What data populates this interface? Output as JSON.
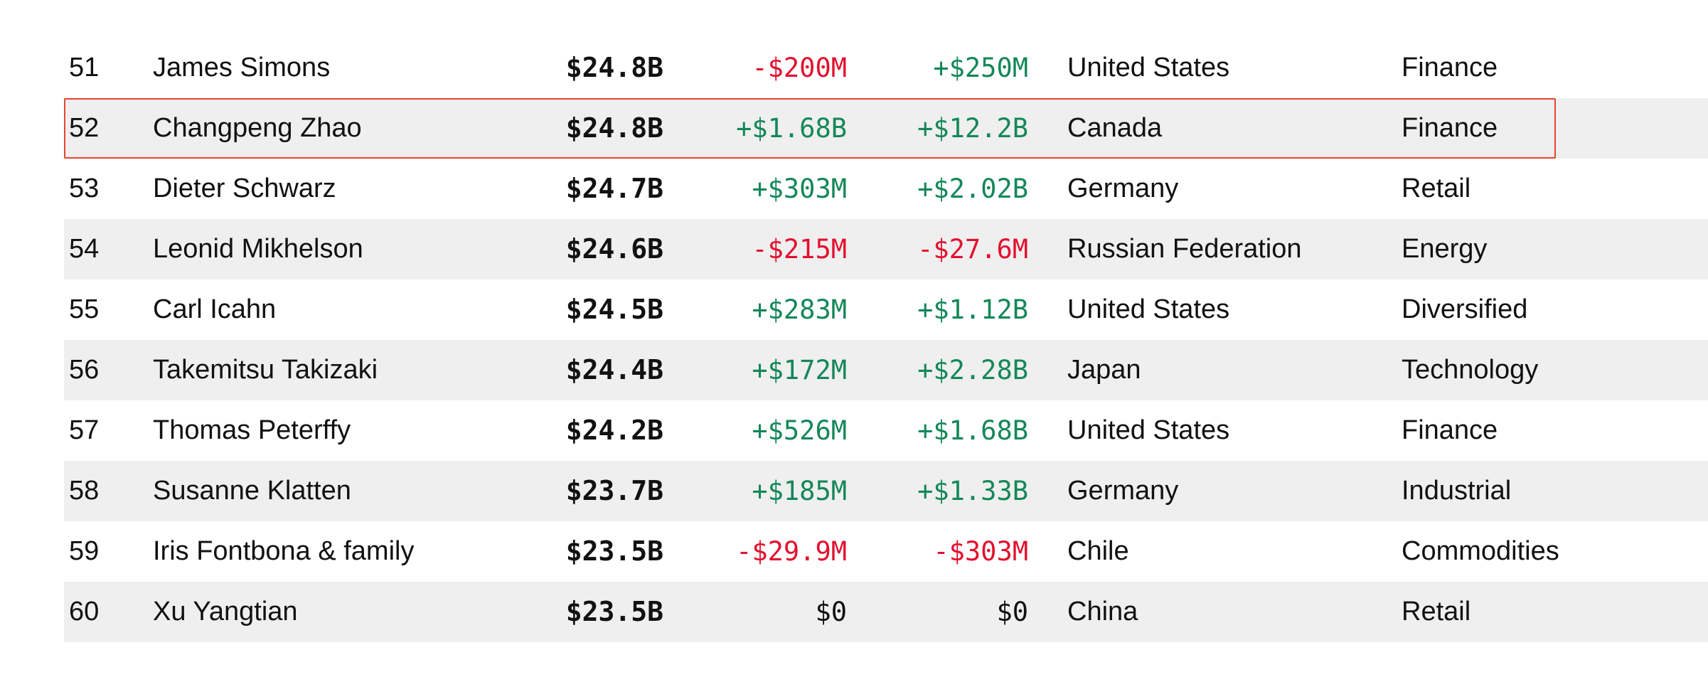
{
  "colors": {
    "positive": "#14875a",
    "negative": "#e3102e",
    "highlight_border": "#e8442e",
    "alt_row": "#efefef"
  },
  "rows": [
    {
      "rank": "51",
      "name": "James Simons",
      "net_worth": "$24.8B",
      "change_1": "-$200M",
      "change_2": "+$250M",
      "country": "United States",
      "industry": "Finance"
    },
    {
      "rank": "52",
      "name": "Changpeng Zhao",
      "net_worth": "$24.8B",
      "change_1": "+$1.68B",
      "change_2": "+$12.2B",
      "country": "Canada",
      "industry": "Finance"
    },
    {
      "rank": "53",
      "name": "Dieter Schwarz",
      "net_worth": "$24.7B",
      "change_1": "+$303M",
      "change_2": "+$2.02B",
      "country": "Germany",
      "industry": "Retail"
    },
    {
      "rank": "54",
      "name": "Leonid Mikhelson",
      "net_worth": "$24.6B",
      "change_1": "-$215M",
      "change_2": "-$27.6M",
      "country": "Russian Federation",
      "industry": "Energy"
    },
    {
      "rank": "55",
      "name": "Carl Icahn",
      "net_worth": "$24.5B",
      "change_1": "+$283M",
      "change_2": "+$1.12B",
      "country": "United States",
      "industry": "Diversified"
    },
    {
      "rank": "56",
      "name": "Takemitsu Takizaki",
      "net_worth": "$24.4B",
      "change_1": "+$172M",
      "change_2": "+$2.28B",
      "country": "Japan",
      "industry": "Technology"
    },
    {
      "rank": "57",
      "name": "Thomas Peterffy",
      "net_worth": "$24.2B",
      "change_1": "+$526M",
      "change_2": "+$1.68B",
      "country": "United States",
      "industry": "Finance"
    },
    {
      "rank": "58",
      "name": "Susanne Klatten",
      "net_worth": "$23.7B",
      "change_1": "+$185M",
      "change_2": "+$1.33B",
      "country": "Germany",
      "industry": "Industrial"
    },
    {
      "rank": "59",
      "name": "Iris Fontbona & family",
      "net_worth": "$23.5B",
      "change_1": "-$29.9M",
      "change_2": "-$303M",
      "country": "Chile",
      "industry": "Commodities"
    },
    {
      "rank": "60",
      "name": "Xu Yangtian",
      "net_worth": "$23.5B",
      "change_1": "$0",
      "change_2": "$0",
      "country": "China",
      "industry": "Retail"
    }
  ]
}
